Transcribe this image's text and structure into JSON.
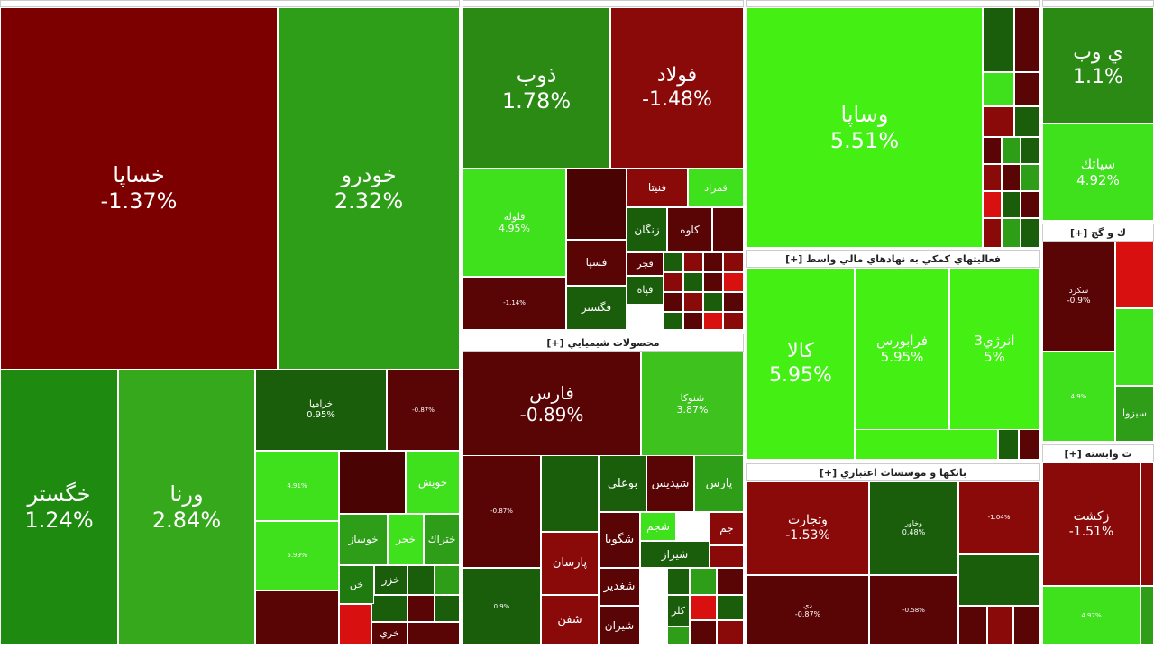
{
  "sections": [
    {
      "tiles": [
        {
          "label": "خساپا",
          "change": "-1.37%"
        },
        {
          "label": "خودرو",
          "change": "2.32%"
        },
        {
          "label": "خگستر",
          "change": "1.24%"
        },
        {
          "label": "ورنا",
          "change": "2.84%"
        },
        {
          "label": "خزاميا",
          "change": "0.95%"
        },
        {
          "change": "-0.87%"
        },
        {
          "change": "4.91%"
        },
        {
          "change": "5.99%"
        },
        {
          "label": "خويش"
        },
        {
          "label": "خوساز"
        },
        {
          "label": "خجر"
        },
        {
          "label": "ختراك"
        },
        {
          "label": "خن"
        },
        {
          "label": "خزر"
        },
        {
          "label": "خري"
        }
      ]
    },
    {
      "tiles": [
        {
          "label": "ذوب",
          "change": "1.78%"
        },
        {
          "label": "فولاد",
          "change": "-1.48%"
        },
        {
          "label": "فلوله",
          "change": "4.95%"
        },
        {
          "change": "-1.14%"
        },
        {
          "label": "فنيتا"
        },
        {
          "label": "فمراد"
        },
        {
          "label": "زنگان"
        },
        {
          "label": "كاوه"
        },
        {
          "label": "فسپا"
        },
        {
          "label": "فجر"
        },
        {
          "label": "فپاه"
        },
        {
          "label": "فگستر"
        }
      ]
    },
    {
      "header": "محصولات شيميايي [+]",
      "tiles": [
        {
          "label": "فارس",
          "change": "-0.89%"
        },
        {
          "label": "شنوكا",
          "change": "3.87%"
        },
        {
          "change": "-0.87%"
        },
        {
          "change": "0.9%"
        },
        {
          "label": "بوعلي"
        },
        {
          "label": "شپديس"
        },
        {
          "label": "پارس"
        },
        {
          "label": "پارسان"
        },
        {
          "label": "شگويا"
        },
        {
          "label": "شجم"
        },
        {
          "label": "شيراز"
        },
        {
          "label": "جم"
        },
        {
          "label": "شغدير"
        },
        {
          "label": "شفن"
        },
        {
          "label": "شيران"
        },
        {
          "label": "كلر"
        }
      ]
    },
    {
      "tiles": [
        {
          "label": "وساپا",
          "change": "5.51%"
        }
      ]
    },
    {
      "header": "فعاليتهاي كمكي به نهادهاي مالي واسط [+]",
      "tiles": [
        {
          "label": "كالا",
          "change": "5.95%"
        },
        {
          "label": "فرابورس",
          "change": "5.95%"
        },
        {
          "label": "انرژي3",
          "change": "5%"
        }
      ]
    },
    {
      "header": "بانكها و موسسات اعتباري [+]",
      "tiles": [
        {
          "label": "وتجارت",
          "change": "-1.53%"
        },
        {
          "label": "وخاور",
          "change": "0.48%"
        },
        {
          "change": "-1.04%"
        },
        {
          "label": "دي",
          "change": "-0.87%"
        },
        {
          "change": "-0.58%"
        }
      ]
    },
    {
      "tiles": [
        {
          "label": "ي وب",
          "change": "1.1%"
        },
        {
          "label": "سياتك",
          "change": "4.92%"
        }
      ]
    },
    {
      "header": "ك و گچ [+]",
      "tiles": [
        {
          "label": "سكرد",
          "change": "-0.9%"
        },
        {
          "change": "4.9%"
        },
        {
          "label": "سيزوا"
        }
      ]
    },
    {
      "header": "ت وابسته [+]",
      "tiles": [
        {
          "label": "زكشت",
          "change": "-1.51%"
        },
        {
          "change": "4.97%"
        }
      ]
    }
  ]
}
